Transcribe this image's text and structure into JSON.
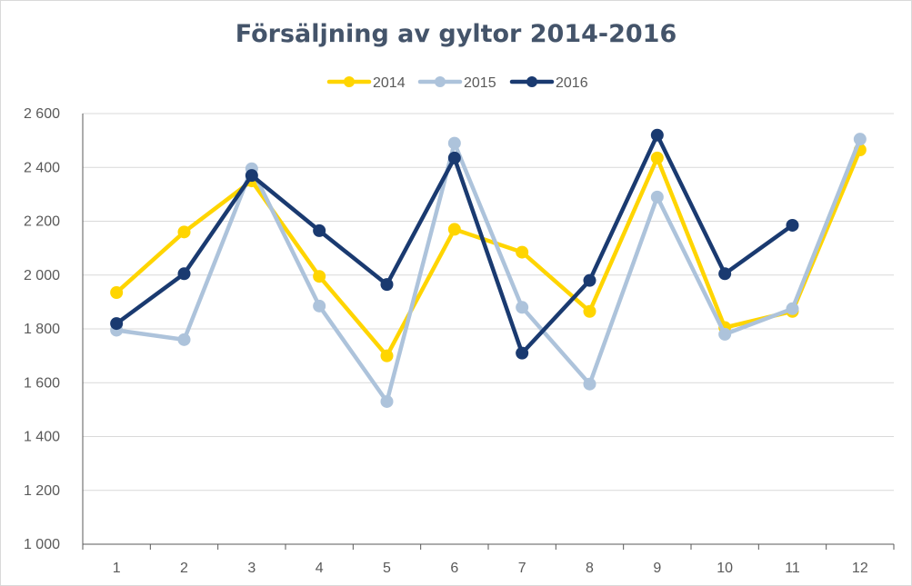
{
  "chart_data": {
    "type": "line",
    "title": "Försäljning av gyltor 2014-2016",
    "xlabel": "",
    "ylabel": "",
    "categories": [
      "1",
      "2",
      "3",
      "4",
      "5",
      "6",
      "7",
      "8",
      "9",
      "10",
      "11",
      "12"
    ],
    "ylim": [
      1000,
      2600
    ],
    "yticks": [
      1000,
      1200,
      1400,
      1600,
      1800,
      2000,
      2200,
      2400,
      2600
    ],
    "ytick_labels": [
      "1 000",
      "1 200",
      "1 400",
      "1 600",
      "1 800",
      "2 000",
      "2 200",
      "2 400",
      "2 600"
    ],
    "grid": true,
    "legend_position": "top-center",
    "series": [
      {
        "name": "2014",
        "color": "#ffd500",
        "values": [
          1935,
          2160,
          2350,
          1995,
          1700,
          2170,
          2085,
          1865,
          2435,
          1805,
          1865,
          2465
        ]
      },
      {
        "name": "2015",
        "color": "#adc3db",
        "values": [
          1795,
          1760,
          2395,
          1885,
          1530,
          2490,
          1880,
          1595,
          2290,
          1780,
          1875,
          2505
        ]
      },
      {
        "name": "2016",
        "color": "#1a3a70",
        "values": [
          1820,
          2005,
          2370,
          2165,
          1965,
          2435,
          1710,
          1980,
          2520,
          2005,
          2185,
          null
        ]
      }
    ]
  }
}
